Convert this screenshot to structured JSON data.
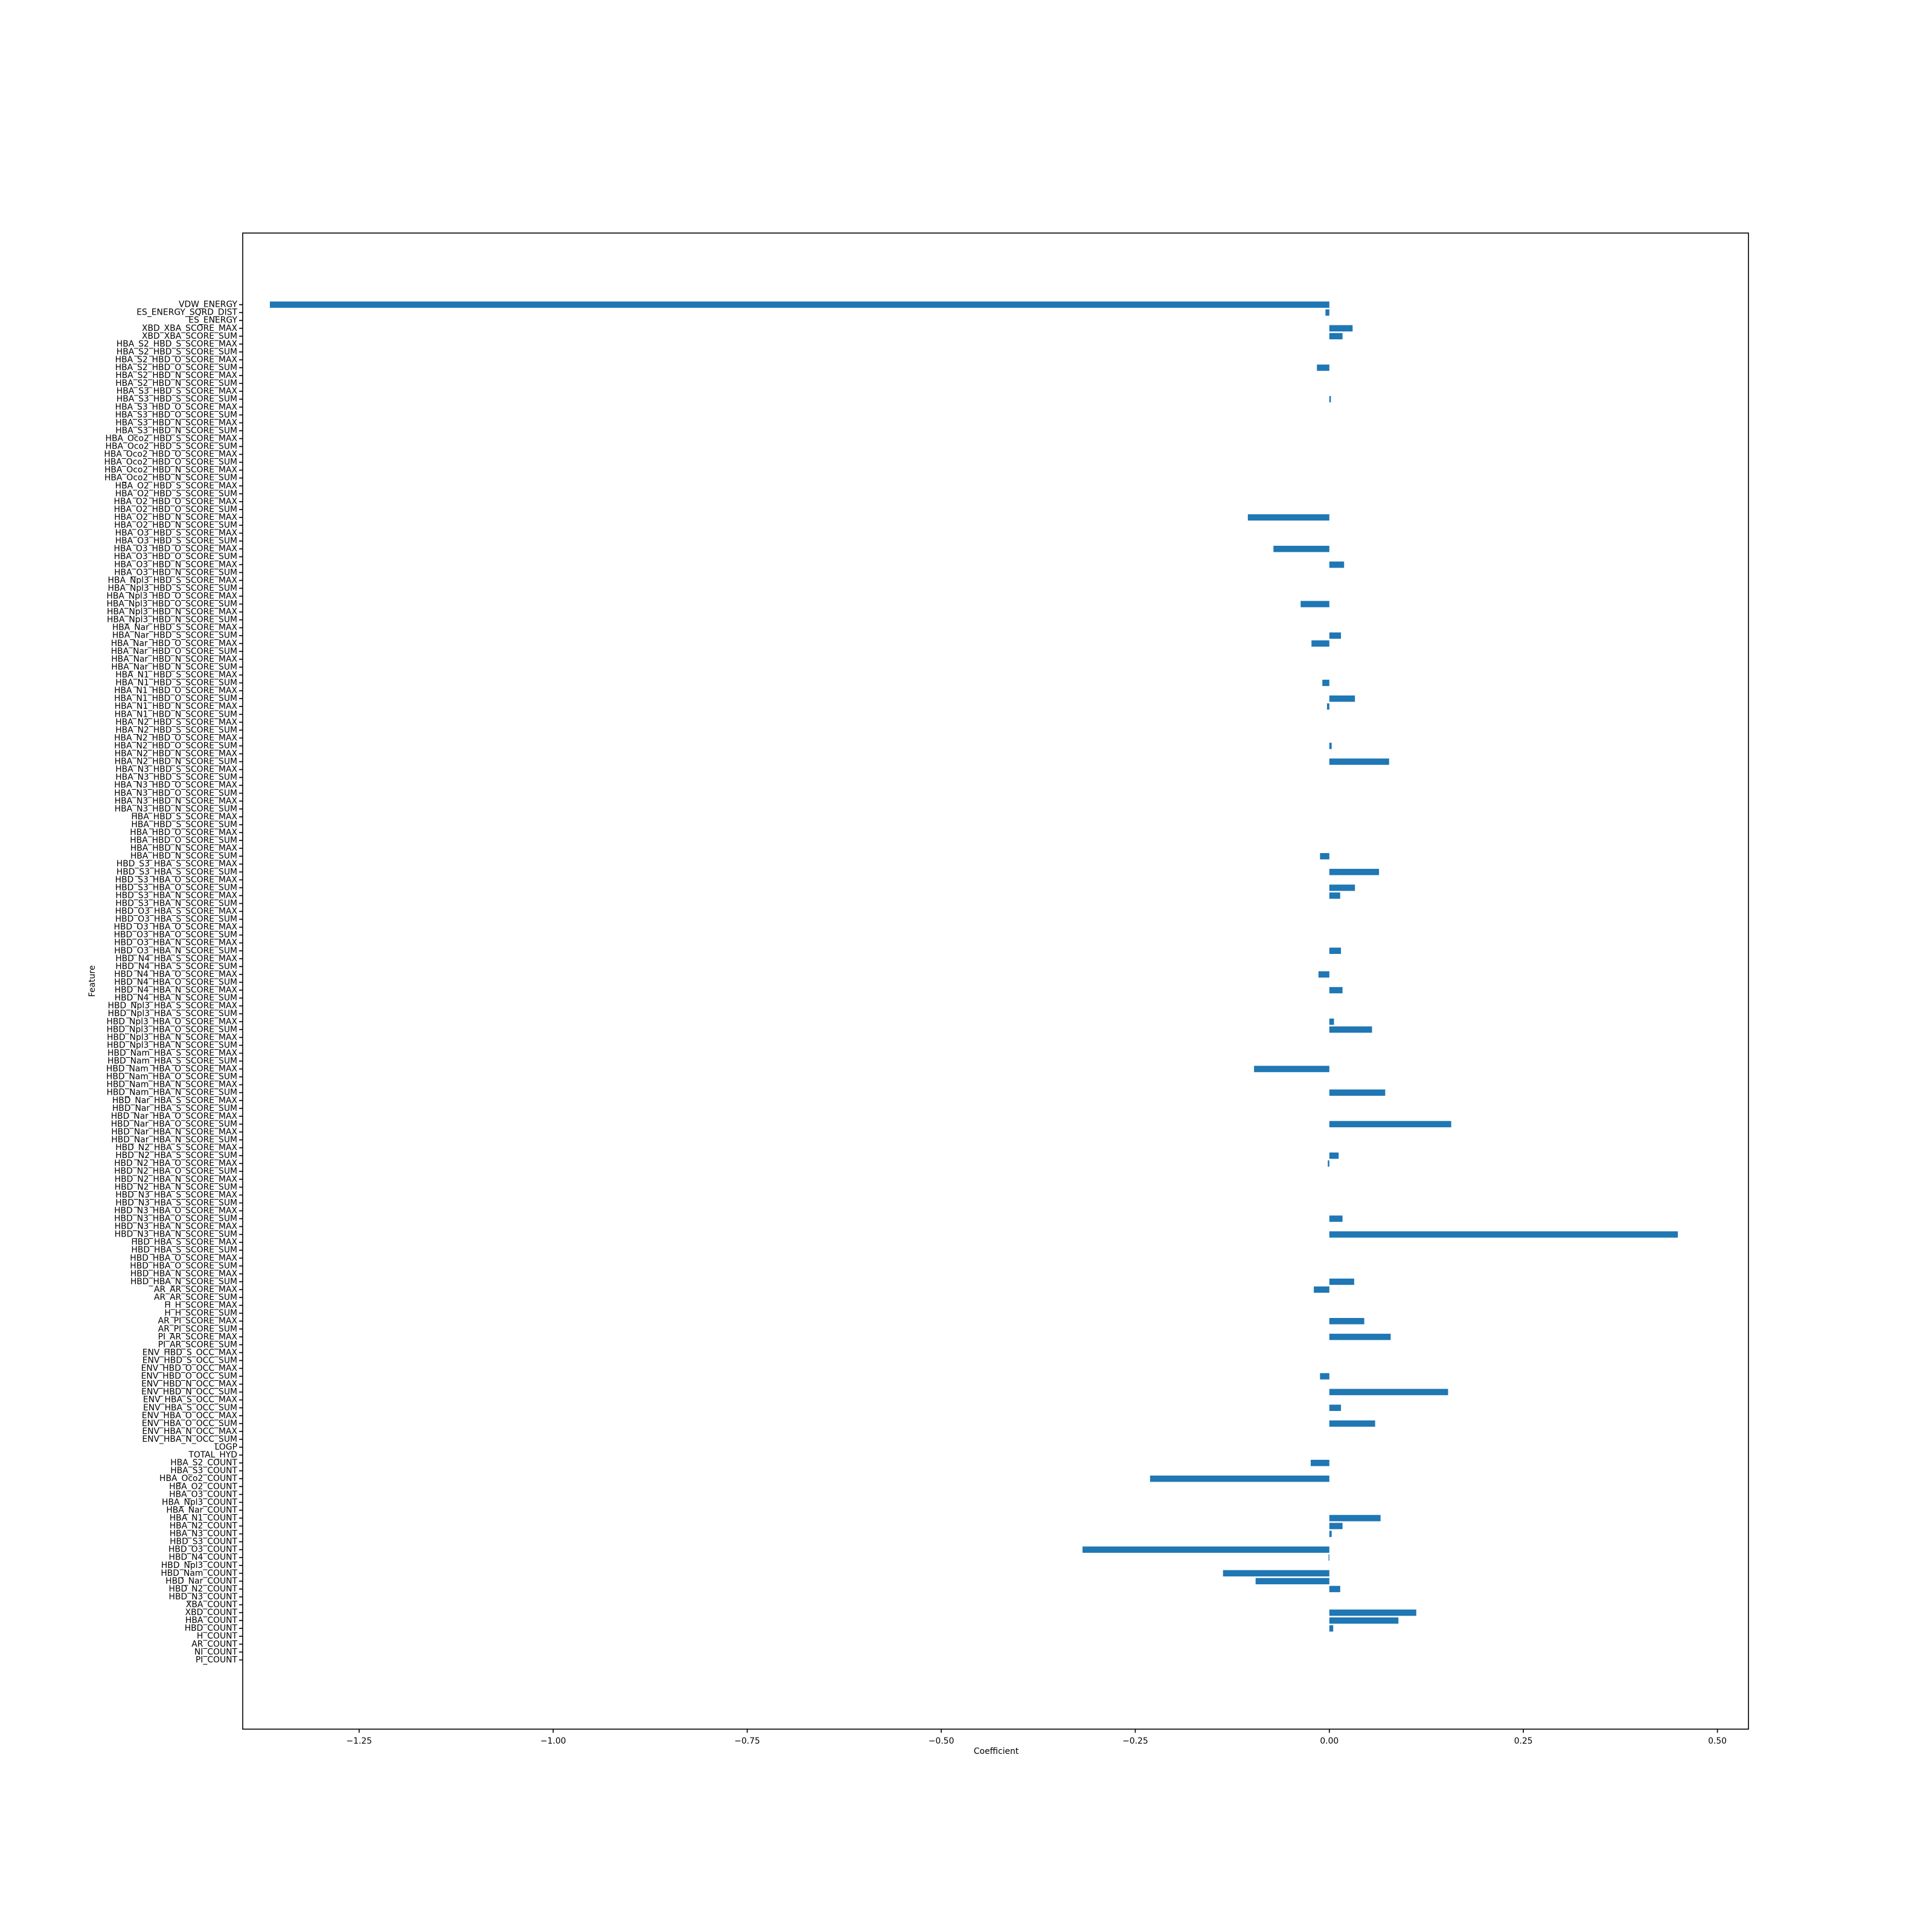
{
  "chart_data": {
    "type": "bar",
    "orientation": "horizontal",
    "xlabel": "Coefficient",
    "ylabel": "Feature",
    "xlim": [
      -1.4,
      0.54
    ],
    "xticks": [
      -1.25,
      -1.0,
      -0.75,
      -0.5,
      -0.25,
      0.0,
      0.25,
      0.5
    ],
    "xtick_labels": [
      "−1.25",
      "−1.00",
      "−0.75",
      "−0.50",
      "−0.25",
      "0.00",
      "0.25",
      "0.50"
    ],
    "grid": false,
    "bar_color": "#1f77b4",
    "categories": [
      "VDW_ENERGY",
      "ES_ENERGY_SQRD_DIST",
      "ES_ENERGY",
      "XBD_XBA_SCORE_MAX",
      "XBD_XBA_SCORE_SUM",
      "HBA_S2_HBD_S_SCORE_MAX",
      "HBA_S2_HBD_S_SCORE_SUM",
      "HBA_S2_HBD_O_SCORE_MAX",
      "HBA_S2_HBD_O_SCORE_SUM",
      "HBA_S2_HBD_N_SCORE_MAX",
      "HBA_S2_HBD_N_SCORE_SUM",
      "HBA_S3_HBD_S_SCORE_MAX",
      "HBA_S3_HBD_S_SCORE_SUM",
      "HBA_S3_HBD_O_SCORE_MAX",
      "HBA_S3_HBD_O_SCORE_SUM",
      "HBA_S3_HBD_N_SCORE_MAX",
      "HBA_S3_HBD_N_SCORE_SUM",
      "HBA_Oco2_HBD_S_SCORE_MAX",
      "HBA_Oco2_HBD_S_SCORE_SUM",
      "HBA_Oco2_HBD_O_SCORE_MAX",
      "HBA_Oco2_HBD_O_SCORE_SUM",
      "HBA_Oco2_HBD_N_SCORE_MAX",
      "HBA_Oco2_HBD_N_SCORE_SUM",
      "HBA_O2_HBD_S_SCORE_MAX",
      "HBA_O2_HBD_S_SCORE_SUM",
      "HBA_O2_HBD_O_SCORE_MAX",
      "HBA_O2_HBD_O_SCORE_SUM",
      "HBA_O2_HBD_N_SCORE_MAX",
      "HBA_O2_HBD_N_SCORE_SUM",
      "HBA_O3_HBD_S_SCORE_MAX",
      "HBA_O3_HBD_S_SCORE_SUM",
      "HBA_O3_HBD_O_SCORE_MAX",
      "HBA_O3_HBD_O_SCORE_SUM",
      "HBA_O3_HBD_N_SCORE_MAX",
      "HBA_O3_HBD_N_SCORE_SUM",
      "HBA_Npl3_HBD_S_SCORE_MAX",
      "HBA_Npl3_HBD_S_SCORE_SUM",
      "HBA_Npl3_HBD_O_SCORE_MAX",
      "HBA_Npl3_HBD_O_SCORE_SUM",
      "HBA_Npl3_HBD_N_SCORE_MAX",
      "HBA_Npl3_HBD_N_SCORE_SUM",
      "HBA_Nar_HBD_S_SCORE_MAX",
      "HBA_Nar_HBD_S_SCORE_SUM",
      "HBA_Nar_HBD_O_SCORE_MAX",
      "HBA_Nar_HBD_O_SCORE_SUM",
      "HBA_Nar_HBD_N_SCORE_MAX",
      "HBA_Nar_HBD_N_SCORE_SUM",
      "HBA_N1_HBD_S_SCORE_MAX",
      "HBA_N1_HBD_S_SCORE_SUM",
      "HBA_N1_HBD_O_SCORE_MAX",
      "HBA_N1_HBD_O_SCORE_SUM",
      "HBA_N1_HBD_N_SCORE_MAX",
      "HBA_N1_HBD_N_SCORE_SUM",
      "HBA_N2_HBD_S_SCORE_MAX",
      "HBA_N2_HBD_S_SCORE_SUM",
      "HBA_N2_HBD_O_SCORE_MAX",
      "HBA_N2_HBD_O_SCORE_SUM",
      "HBA_N2_HBD_N_SCORE_MAX",
      "HBA_N2_HBD_N_SCORE_SUM",
      "HBA_N3_HBD_S_SCORE_MAX",
      "HBA_N3_HBD_S_SCORE_SUM",
      "HBA_N3_HBD_O_SCORE_MAX",
      "HBA_N3_HBD_O_SCORE_SUM",
      "HBA_N3_HBD_N_SCORE_MAX",
      "HBA_N3_HBD_N_SCORE_SUM",
      "HBA_HBD_S_SCORE_MAX",
      "HBA_HBD_S_SCORE_SUM",
      "HBA_HBD_O_SCORE_MAX",
      "HBA_HBD_O_SCORE_SUM",
      "HBA_HBD_N_SCORE_MAX",
      "HBA_HBD_N_SCORE_SUM",
      "HBD_S3_HBA_S_SCORE_MAX",
      "HBD_S3_HBA_S_SCORE_SUM",
      "HBD_S3_HBA_O_SCORE_MAX",
      "HBD_S3_HBA_O_SCORE_SUM",
      "HBD_S3_HBA_N_SCORE_MAX",
      "HBD_S3_HBA_N_SCORE_SUM",
      "HBD_O3_HBA_S_SCORE_MAX",
      "HBD_O3_HBA_S_SCORE_SUM",
      "HBD_O3_HBA_O_SCORE_MAX",
      "HBD_O3_HBA_O_SCORE_SUM",
      "HBD_O3_HBA_N_SCORE_MAX",
      "HBD_O3_HBA_N_SCORE_SUM",
      "HBD_N4_HBA_S_SCORE_MAX",
      "HBD_N4_HBA_S_SCORE_SUM",
      "HBD_N4_HBA_O_SCORE_MAX",
      "HBD_N4_HBA_O_SCORE_SUM",
      "HBD_N4_HBA_N_SCORE_MAX",
      "HBD_N4_HBA_N_SCORE_SUM",
      "HBD_Npl3_HBA_S_SCORE_MAX",
      "HBD_Npl3_HBA_S_SCORE_SUM",
      "HBD_Npl3_HBA_O_SCORE_MAX",
      "HBD_Npl3_HBA_O_SCORE_SUM",
      "HBD_Npl3_HBA_N_SCORE_MAX",
      "HBD_Npl3_HBA_N_SCORE_SUM",
      "HBD_Nam_HBA_S_SCORE_MAX",
      "HBD_Nam_HBA_S_SCORE_SUM",
      "HBD_Nam_HBA_O_SCORE_MAX",
      "HBD_Nam_HBA_O_SCORE_SUM",
      "HBD_Nam_HBA_N_SCORE_MAX",
      "HBD_Nam_HBA_N_SCORE_SUM",
      "HBD_Nar_HBA_S_SCORE_MAX",
      "HBD_Nar_HBA_S_SCORE_SUM",
      "HBD_Nar_HBA_O_SCORE_MAX",
      "HBD_Nar_HBA_O_SCORE_SUM",
      "HBD_Nar_HBA_N_SCORE_MAX",
      "HBD_Nar_HBA_N_SCORE_SUM",
      "HBD_N2_HBA_S_SCORE_MAX",
      "HBD_N2_HBA_S_SCORE_SUM",
      "HBD_N2_HBA_O_SCORE_MAX",
      "HBD_N2_HBA_O_SCORE_SUM",
      "HBD_N2_HBA_N_SCORE_MAX",
      "HBD_N2_HBA_N_SCORE_SUM",
      "HBD_N3_HBA_S_SCORE_MAX",
      "HBD_N3_HBA_S_SCORE_SUM",
      "HBD_N3_HBA_O_SCORE_MAX",
      "HBD_N3_HBA_O_SCORE_SUM",
      "HBD_N3_HBA_N_SCORE_MAX",
      "HBD_N3_HBA_N_SCORE_SUM",
      "HBD_HBA_S_SCORE_MAX",
      "HBD_HBA_S_SCORE_SUM",
      "HBD_HBA_O_SCORE_MAX",
      "HBD_HBA_O_SCORE_SUM",
      "HBD_HBA_N_SCORE_MAX",
      "HBD_HBA_N_SCORE_SUM",
      "AR_AR_SCORE_MAX",
      "AR_AR_SCORE_SUM",
      "H_H_SCORE_MAX",
      "H_H_SCORE_SUM",
      "AR_PI_SCORE_MAX",
      "AR_PI_SCORE_SUM",
      "PI_AR_SCORE_MAX",
      "PI_AR_SCORE_SUM",
      "ENV_HBD_S_OCC_MAX",
      "ENV_HBD_S_OCC_SUM",
      "ENV_HBD_O_OCC_MAX",
      "ENV_HBD_O_OCC_SUM",
      "ENV_HBD_N_OCC_MAX",
      "ENV_HBD_N_OCC_SUM",
      "ENV_HBA_S_OCC_MAX",
      "ENV_HBA_S_OCC_SUM",
      "ENV_HBA_O_OCC_MAX",
      "ENV_HBA_O_OCC_SUM",
      "ENV_HBA_N_OCC_MAX",
      "ENV_HBA_N_OCC_SUM",
      "LOGP",
      "TOTAL_HYD",
      "HBA_S2_COUNT",
      "HBA_S3_COUNT",
      "HBA_Oco2_COUNT",
      "HBA_O2_COUNT",
      "HBA_O3_COUNT",
      "HBA_Npl3_COUNT",
      "HBA_Nar_COUNT",
      "HBA_N1_COUNT",
      "HBA_N2_COUNT",
      "HBA_N3_COUNT",
      "HBD_S3_COUNT",
      "HBD_O3_COUNT",
      "HBD_N4_COUNT",
      "HBD_Npl3_COUNT",
      "HBD_Nam_COUNT",
      "HBD_Nar_COUNT",
      "HBD_N2_COUNT",
      "HBD_N3_COUNT",
      "XBA_COUNT",
      "XBD_COUNT",
      "HBA_COUNT",
      "HBD_COUNT",
      "H_COUNT",
      "AR_COUNT",
      "NI_COUNT",
      "PI_COUNT"
    ],
    "values": [
      -1.365,
      -0.005,
      0,
      0.03,
      0.017,
      0,
      0,
      0,
      -0.016,
      0,
      0,
      0,
      0.002,
      0,
      0,
      0,
      0,
      0,
      0,
      0,
      0,
      0,
      0,
      0,
      0,
      0,
      0,
      -0.105,
      0,
      0,
      0,
      -0.072,
      0,
      0.019,
      0,
      0,
      0,
      0,
      -0.037,
      0,
      0,
      0,
      0.015,
      -0.023,
      0,
      0,
      0,
      0,
      -0.009,
      0,
      0.033,
      -0.003,
      0,
      0,
      0,
      0,
      0.003,
      0,
      0.077,
      0,
      0,
      0,
      0,
      0,
      0,
      0,
      0,
      0,
      0,
      0,
      -0.012,
      0,
      0.064,
      0,
      0.033,
      0.014,
      0,
      0,
      0,
      0,
      0,
      0,
      0.015,
      0,
      0,
      -0.014,
      0,
      0.017,
      0,
      0,
      0,
      0.006,
      0.055,
      0,
      0,
      0,
      0,
      -0.097,
      0,
      0,
      0.072,
      0,
      0,
      0,
      0.157,
      0,
      0,
      0,
      0.012,
      -0.002,
      0,
      0,
      0,
      0,
      0,
      0,
      0.017,
      0,
      0.449,
      0,
      0,
      0,
      0,
      0,
      0.032,
      -0.02,
      0,
      0,
      0,
      0.045,
      0,
      0.079,
      0,
      0,
      0,
      0,
      -0.012,
      0,
      0.153,
      0,
      0.015,
      0,
      0.059,
      0,
      0,
      0,
      0,
      -0.024,
      0,
      -0.231,
      0,
      0,
      0,
      0,
      0.066,
      0.017,
      0.003,
      0,
      -0.318,
      -0.001,
      0,
      -0.137,
      -0.095,
      0.014,
      0,
      0,
      0.112,
      0.089,
      0.005,
      0,
      0,
      0,
      0
    ]
  }
}
